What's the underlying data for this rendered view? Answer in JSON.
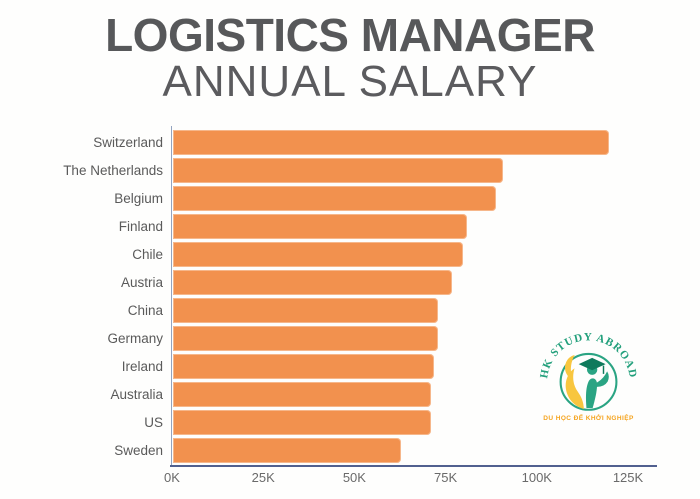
{
  "title": {
    "line1": "LOGISTICS MANAGER",
    "line2": "ANNUAL SALARY"
  },
  "chart_data": {
    "type": "bar",
    "orientation": "horizontal",
    "title": "LOGISTICS MANAGER ANNUAL SALARY",
    "categories": [
      "Switzerland",
      "The Netherlands",
      "Belgium",
      "Finland",
      "Chile",
      "Austria",
      "China",
      "Germany",
      "Ireland",
      "Australia",
      "US",
      "Sweden"
    ],
    "values_k": [
      120,
      91,
      89,
      81,
      80,
      77,
      73,
      73,
      72,
      71,
      71,
      63
    ],
    "unit": "K",
    "xlabel": "",
    "ylabel": "",
    "x_ticks": [
      "0K",
      "25K",
      "50K",
      "75K",
      "100K",
      "125K"
    ],
    "x_tick_values_k": [
      0,
      25,
      50,
      75,
      100,
      125
    ],
    "xlim_k": [
      0,
      133
    ],
    "grid": false,
    "legend": false,
    "bar_color": "#F2914E",
    "axis_line_color": "#51608F",
    "y_axis_line_color": "#93A4C0",
    "label_color": "#5A5A5A",
    "tick_color": "#6A6A6A",
    "title_color": "#57585A"
  },
  "watermark": {
    "arc_text": "HK STUDY ABROAD",
    "tagline": "DU HỌC ĐỂ KHỞI NGHIỆP",
    "arc_color": "#23A07C",
    "ring_color": "#2AA483",
    "cap_color": "#0F7A5C",
    "figure_green": "#2AA483",
    "figure_yellow": "#F8C63F",
    "tagline_color": "#F5A41F"
  }
}
